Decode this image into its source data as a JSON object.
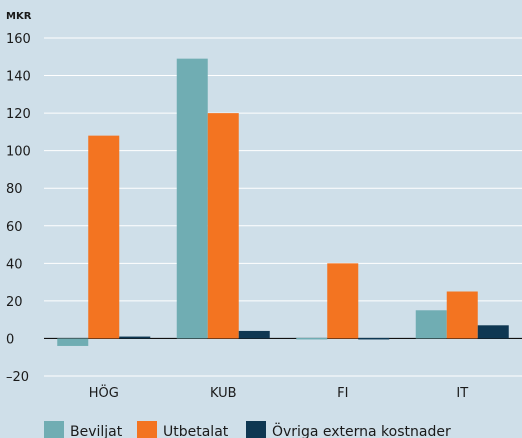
{
  "chart_data": {
    "type": "bar",
    "unit_label": "MKR",
    "categories": [
      "HÖG",
      "KUB",
      "FI",
      "IT"
    ],
    "series": [
      {
        "name": "Beviljat",
        "color": "#70adb3",
        "values": [
          -4,
          149,
          0,
          15
        ]
      },
      {
        "name": "Utbetalat",
        "color": "#f37421",
        "values": [
          108,
          120,
          40,
          25
        ]
      },
      {
        "name": "Övriga externa kostnader",
        "color": "#0e3752",
        "values": [
          1,
          4,
          0,
          7
        ]
      }
    ],
    "yticks": [
      160,
      140,
      120,
      100,
      80,
      60,
      40,
      20,
      0,
      -20
    ],
    "ylim": [
      -20,
      160
    ],
    "grid": true,
    "legend_position": "bottom"
  }
}
